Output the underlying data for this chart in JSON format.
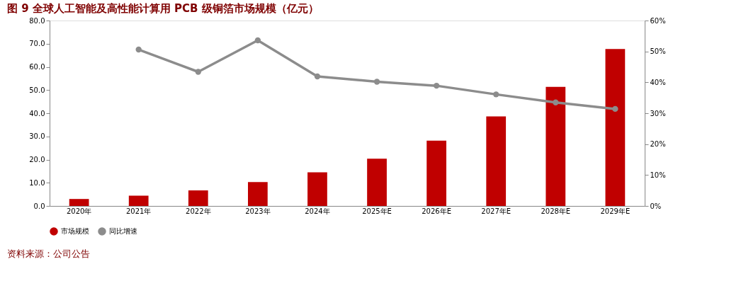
{
  "chart_data": {
    "type": "bar",
    "title": "图 9 全球人工智能及高性能计算用 PCB 级铜箔市场规模（亿元）",
    "categories": [
      "2020年",
      "2021年",
      "2022年",
      "2023年",
      "2024年",
      "2025年E",
      "2026年E",
      "2027年E",
      "2028年E",
      "2029年E"
    ],
    "series": [
      {
        "name": "市场规模",
        "color": "#c00000",
        "values": [
          3.0,
          4.4,
          6.7,
          10.3,
          14.5,
          20.4,
          28.2,
          38.6,
          51.4,
          67.7
        ]
      },
      {
        "name": "同比增速",
        "type": "line",
        "axis": "y2",
        "color": "#8c8c8c",
        "marker": "circle",
        "values": [
          null,
          50.6,
          43.4,
          53.6,
          41.9,
          40.2,
          38.9,
          36.1,
          33.5,
          31.4
        ]
      }
    ],
    "ylim": [
      0,
      80
    ],
    "yticks": [
      {
        "value": 0,
        "label": "0.0"
      },
      {
        "value": 10,
        "label": "10.0"
      },
      {
        "value": 20,
        "label": "20.0"
      },
      {
        "value": 30,
        "label": "30.0"
      },
      {
        "value": 40,
        "label": "40.0"
      },
      {
        "value": 50,
        "label": "50.0"
      },
      {
        "value": 60,
        "label": "60.0"
      },
      {
        "value": 70,
        "label": "70.0"
      },
      {
        "value": 80,
        "label": "80.0"
      }
    ],
    "y2lim": [
      0,
      60
    ],
    "y2ticks": [
      {
        "value": 0,
        "label": "0%"
      },
      {
        "value": 10,
        "label": "10%"
      },
      {
        "value": 20,
        "label": "20%"
      },
      {
        "value": 30,
        "label": "30%"
      },
      {
        "value": 40,
        "label": "40%"
      },
      {
        "value": 50,
        "label": "50%"
      },
      {
        "value": 60,
        "label": "60%"
      }
    ],
    "grid": false,
    "legend": "bottom",
    "annotations": [
      "资料来源：公司公告"
    ]
  }
}
